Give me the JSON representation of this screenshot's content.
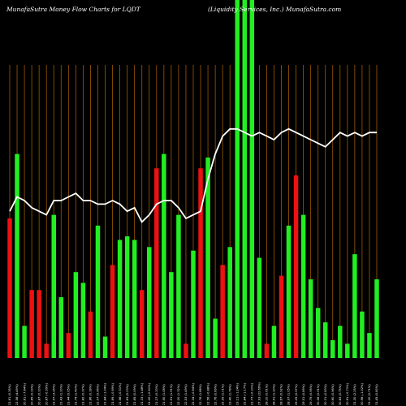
{
  "chart_data": {
    "type": "bar",
    "title_left": "MunafaSutra  Money Flow  Charts for LQDT",
    "title_right": "(Liquidity Services,  Inc.) MunafaSutra.com",
    "ylim": [
      0,
      100
    ],
    "grid": "vertical",
    "colors": {
      "background": "#000000",
      "up": "#22ee22",
      "down": "#ee1111",
      "line": "#ffffff",
      "grid": "#a05a00"
    },
    "categories": [
      "21.61 (0.35%)",
      "22.58 (4.49%)",
      "20.81 (-7.84%)",
      "20.85 (0.19%)",
      "20.87 (0.10%)",
      "20.87 (-0.99%)",
      "21.57 (3.35%)",
      "21.43 (1.10%)",
      "21.44 (0.05%)",
      "21.74 (1.40%)",
      "21.82 (0.37%)",
      "21.86 (0.18%)",
      "22.07 (0.96%)",
      "21.84 (-1.04%)",
      "21.69 (-0.69%)",
      "21.58 (-0.51%)",
      "21.63 (0.23%)",
      "21.65 (0.09%)",
      "21.33 (-1.48%)",
      "21.20 (-0.61%)",
      "21.27 (0.33%)",
      "21.50 (1.08%)",
      "21.91 (1.91%)",
      "22.20 (1.32%)",
      "22.53 (1.49%)",
      "22.34 (-0.84%)",
      "22.76 (1.88%)",
      "22.56 (-0.88%)",
      "22.76 (0.89%)",
      "22.99 (1.01%)",
      "23.40 (1.78%)",
      "23.11 (-1.24%)",
      "22.84 (-1.17%)",
      "22.77 (-0.31%)",
      "27.93 (22.66%)",
      "28.10 (0.61%)",
      "28.41 (1.10%)",
      "28.67 (0.92%)",
      "28.97 (1.05%)",
      "29.25 (0.97%)",
      "29.51 (0.89%)",
      "29.79 (0.95%)",
      "30.06 (0.91%)",
      "30.31 (0.83%)",
      "30.60 (0.96%)",
      "30.83 (0.75%)",
      "30.61 (-0.71%)",
      "31.30 (2.25%)",
      "30.98 (-1.02%)",
      "31.20 (0.71%)",
      "31.45 (0.80%)"
    ],
    "series": [
      {
        "type": "bar",
        "values": [
          39,
          57,
          9,
          19,
          19,
          4,
          40,
          17,
          7,
          24,
          21,
          13,
          37,
          6,
          26,
          33,
          34,
          33,
          19,
          31,
          53,
          57,
          24,
          40,
          4,
          30,
          53,
          56,
          11,
          26,
          31,
          100,
          100,
          100,
          28,
          4,
          9,
          23,
          37,
          51,
          40,
          22,
          14,
          10,
          5,
          9,
          4,
          29,
          13,
          7,
          22
        ],
        "direction": [
          "d",
          "u",
          "u",
          "d",
          "d",
          "d",
          "u",
          "u",
          "d",
          "u",
          "u",
          "d",
          "u",
          "u",
          "d",
          "u",
          "u",
          "u",
          "d",
          "u",
          "d",
          "u",
          "u",
          "u",
          "d",
          "u",
          "d",
          "u",
          "u",
          "d",
          "u",
          "u",
          "u",
          "u",
          "u",
          "d",
          "u",
          "d",
          "u",
          "d",
          "u",
          "u",
          "u",
          "u",
          "u",
          "u",
          "u",
          "u",
          "u",
          "u",
          "u"
        ]
      },
      {
        "type": "line",
        "values": [
          41,
          45,
          44,
          42,
          41,
          40,
          44,
          44,
          45,
          46,
          44,
          44,
          43,
          43,
          44,
          43,
          41,
          42,
          38,
          40,
          43,
          44,
          44,
          42,
          39,
          40,
          41,
          50,
          57,
          62,
          64,
          64,
          63,
          62,
          63,
          62,
          61,
          63,
          64,
          63,
          62,
          61,
          60,
          59,
          61,
          63,
          62,
          63,
          62,
          63,
          63
        ]
      }
    ]
  }
}
